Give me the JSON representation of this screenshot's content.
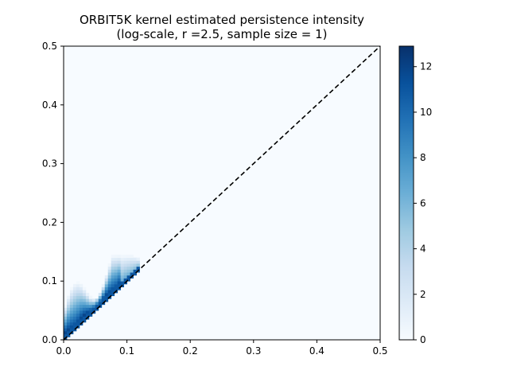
{
  "chart_data": {
    "type": "heatmap",
    "title": "ORBIT5K kernel estimated persistence intensity",
    "subtitle": "(log-scale, r =2.5, sample size = 1)",
    "xlabel": "",
    "ylabel": "",
    "xlim": [
      0.0,
      0.5
    ],
    "ylim": [
      0.0,
      0.5
    ],
    "x_ticks": [
      "0.0",
      "0.1",
      "0.2",
      "0.3",
      "0.4",
      "0.5"
    ],
    "y_ticks": [
      "0.0",
      "0.1",
      "0.2",
      "0.3",
      "0.4",
      "0.5"
    ],
    "x_tick_values": [
      0.0,
      0.1,
      0.2,
      0.3,
      0.4,
      0.5
    ],
    "y_tick_values": [
      0.0,
      0.1,
      0.2,
      0.3,
      0.4,
      0.5
    ],
    "colormap": "Blues",
    "colorbar": {
      "range": [
        0,
        12.9
      ],
      "ticks": [
        "0",
        "2",
        "4",
        "6",
        "8",
        "10",
        "12"
      ],
      "tick_values": [
        0,
        2,
        4,
        6,
        8,
        10,
        12
      ]
    },
    "reference_line": {
      "from": [
        0.0,
        0.0
      ],
      "to": [
        0.5,
        0.5
      ],
      "style": "dashed",
      "color": "#000000"
    },
    "grid": false,
    "intensity_region": {
      "description_values": "high intensity concentrated above the diagonal for birth 0.0–0.12, death up to ~0.14",
      "birth_range": [
        0.0,
        0.12
      ],
      "death_max": 0.145,
      "peak_value": 12.9
    }
  }
}
